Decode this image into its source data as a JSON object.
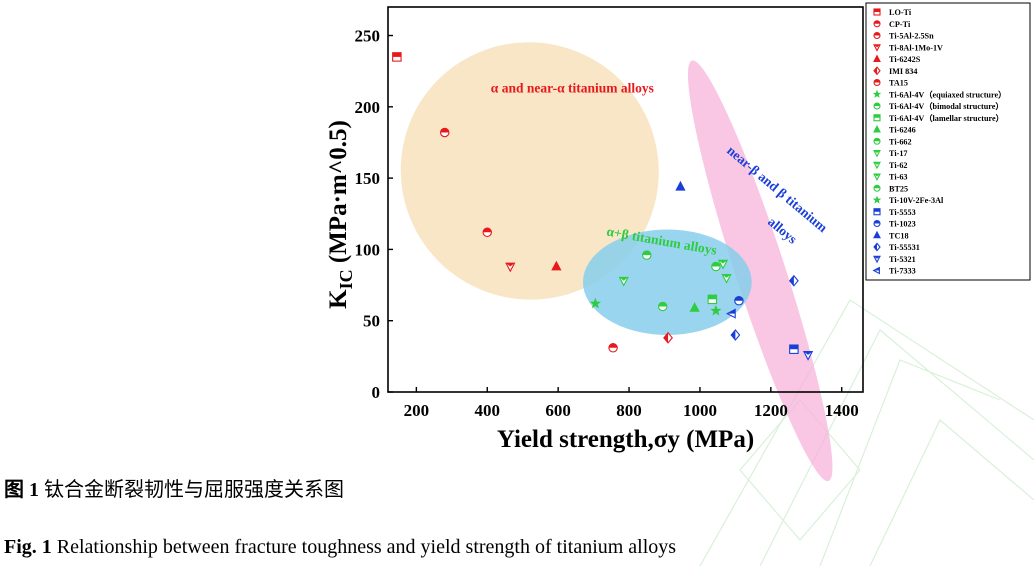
{
  "figure": {
    "caption_cn_label": "图 1",
    "caption_cn_text": "钛合金断裂韧性与屈服强度关系图",
    "caption_en_label": "Fig. 1",
    "caption_en_text": "Relationship between fracture toughness and yield strength of titanium alloys"
  },
  "chart_data": {
    "type": "scatter",
    "title": "",
    "xlabel": "Yield strength,σy (MPa)",
    "ylabel_main": "K",
    "ylabel_sub": "IC",
    "ylabel_rest": " (MPa·m^0.5)",
    "xlim": [
      120,
      1460
    ],
    "ylim": [
      0,
      270
    ],
    "xticks": [
      200,
      400,
      600,
      800,
      1000,
      1200,
      1400
    ],
    "yticks": [
      0,
      50,
      100,
      150,
      200,
      250
    ],
    "grid": false,
    "legend_position": "right",
    "colors": {
      "red": "#e8191c",
      "green": "#2ecc40",
      "blue": "#1a3fd8"
    },
    "regions": [
      {
        "label": "α and near-α titanium alloys",
        "fill": "#f5deb3",
        "cx": 520,
        "cy": 155,
        "rx": 365,
        "ry": 90,
        "angle": 36
      },
      {
        "label": "near-β and β titanium alloys",
        "fill": "#f7b3d9",
        "cx": 1170,
        "cy": 85,
        "rx": 70,
        "ry": 155,
        "angle": -18
      },
      {
        "label": "α+β titanium alloys",
        "fill": "#87ceeb",
        "cx": 908,
        "cy": 77,
        "rx": 238,
        "ry": 37,
        "angle": 0
      }
    ],
    "region_labels": [
      {
        "text": "α and near-α titanium alloys",
        "x": 640,
        "y": 210,
        "color": "#e8191c",
        "rotate": 0
      },
      {
        "text": "α+β titanium alloys",
        "x": 890,
        "y": 103,
        "color": "#2ecc40",
        "rotate": 10
      },
      {
        "text": "near-β and β titanium",
        "x": 1210,
        "y": 140,
        "color": "#1a3fd8",
        "rotate": 40
      },
      {
        "text": "alloys",
        "x": 1225,
        "y": 111,
        "color": "#1a3fd8",
        "rotate": 40
      }
    ],
    "series": [
      {
        "name": "LO-Ti",
        "color": "red",
        "marker": "square-half",
        "points": [
          [
            145,
            235
          ]
        ]
      },
      {
        "name": "CP-Ti",
        "color": "red",
        "marker": "circle-half",
        "points": [
          [
            280,
            182
          ]
        ]
      },
      {
        "name": "Ti-5Al-2.5Sn",
        "color": "red",
        "marker": "circle-half",
        "points": [
          [
            400,
            112
          ]
        ]
      },
      {
        "name": "Ti-8Al-1Mo-1V",
        "color": "red",
        "marker": "tri-down",
        "points": [
          [
            465,
            88
          ]
        ]
      },
      {
        "name": "Ti-6242S",
        "color": "red",
        "marker": "tri-up",
        "points": [
          [
            595,
            88
          ]
        ]
      },
      {
        "name": "IMI 834",
        "color": "red",
        "marker": "diamond-half",
        "points": [
          [
            910,
            38
          ]
        ]
      },
      {
        "name": "TA15",
        "color": "red",
        "marker": "circle-half",
        "points": [
          [
            755,
            31
          ]
        ]
      },
      {
        "name": "Ti-6Al-4V（equiaxed structure）",
        "color": "green",
        "marker": "star",
        "points": [
          [
            705,
            62
          ]
        ]
      },
      {
        "name": "Ti-6Al-4V（bimodal structure）",
        "color": "green",
        "marker": "circle-half",
        "points": [
          [
            850,
            96
          ]
        ]
      },
      {
        "name": "Ti-6Al-4V（lamellar structure）",
        "color": "green",
        "marker": "square-half",
        "points": [
          [
            1035,
            65
          ]
        ]
      },
      {
        "name": "Ti-6246",
        "color": "green",
        "marker": "tri-up",
        "points": [
          [
            985,
            59
          ]
        ]
      },
      {
        "name": "Ti-662",
        "color": "green",
        "marker": "circle-half",
        "points": [
          [
            895,
            60
          ]
        ]
      },
      {
        "name": "Ti-17",
        "color": "green",
        "marker": "tri-down",
        "points": [
          [
            1065,
            90
          ]
        ]
      },
      {
        "name": "Ti-62",
        "color": "green",
        "marker": "tri-down",
        "points": [
          [
            1075,
            80
          ]
        ]
      },
      {
        "name": "Ti-63",
        "color": "green",
        "marker": "tri-down",
        "points": [
          [
            785,
            78
          ]
        ]
      },
      {
        "name": "BT25",
        "color": "green",
        "marker": "circle-half",
        "points": [
          [
            1045,
            88
          ]
        ]
      },
      {
        "name": "Ti-10V-2Fe-3Al",
        "color": "green",
        "marker": "star",
        "points": [
          [
            1045,
            57
          ]
        ]
      },
      {
        "name": "Ti-5553",
        "color": "blue",
        "marker": "square-half",
        "points": [
          [
            1265,
            30
          ]
        ]
      },
      {
        "name": "Ti-1023",
        "color": "blue",
        "marker": "circle-half",
        "points": [
          [
            1110,
            64
          ]
        ]
      },
      {
        "name": "TC18",
        "color": "blue",
        "marker": "tri-up",
        "points": [
          [
            945,
            144
          ]
        ]
      },
      {
        "name": "Ti-55531",
        "color": "blue",
        "marker": "diamond-half",
        "points": [
          [
            1265,
            78
          ],
          [
            1100,
            40
          ]
        ]
      },
      {
        "name": "Ti-5321",
        "color": "blue",
        "marker": "tri-down",
        "points": [
          [
            1305,
            26
          ]
        ]
      },
      {
        "name": "Ti-7333",
        "color": "blue",
        "marker": "tri-left",
        "points": [
          [
            1090,
            55
          ]
        ]
      }
    ]
  }
}
